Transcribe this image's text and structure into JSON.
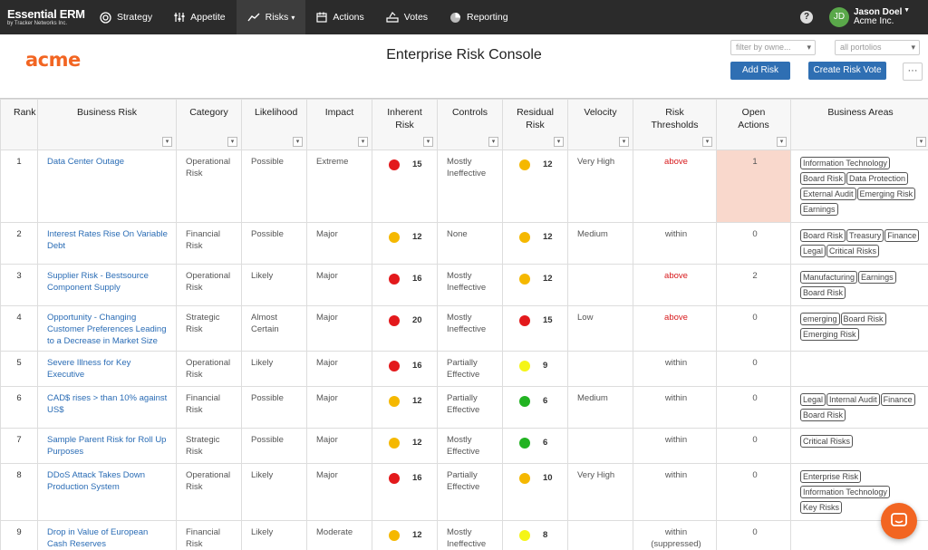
{
  "nav": {
    "brand_title": "Essential ERM",
    "brand_sub": "by Tracker Networks Inc.",
    "items": [
      {
        "label": "Strategy",
        "icon": "target-icon",
        "name": "nav-strategy"
      },
      {
        "label": "Appetite",
        "icon": "sliders-icon",
        "name": "nav-appetite"
      },
      {
        "label": "Risks",
        "icon": "trend-icon",
        "name": "nav-risks",
        "active": true
      },
      {
        "label": "Actions",
        "icon": "calendar-icon",
        "name": "nav-actions"
      },
      {
        "label": "Votes",
        "icon": "vote-icon",
        "name": "nav-votes"
      },
      {
        "label": "Reporting",
        "icon": "pie-icon",
        "name": "nav-reporting"
      }
    ],
    "help": "?",
    "user_initials": "JD",
    "user_name": "Jason Doel",
    "user_org": "Acme Inc."
  },
  "header": {
    "logo": "acme",
    "title": "Enterprise Risk Console",
    "filter_owner_placeholder": "filter by owne...",
    "portfolio_value": "all portolios",
    "add_risk": "Add Risk",
    "create_vote": "Create Risk Vote",
    "more": "···"
  },
  "colors": {
    "red": "#e3191c",
    "orange": "#f5b800",
    "yellow": "#f5f516",
    "green": "#22b322",
    "accent": "#2f6fb3",
    "brand": "#f26522"
  },
  "table": {
    "headers": [
      "Rank",
      "Business Risk",
      "Category",
      "Likelihood",
      "Impact",
      "Inherent Risk",
      "Controls",
      "Residual Risk",
      "Velocity",
      "Risk Thresholds",
      "Open Actions",
      "Business Areas"
    ],
    "rows": [
      {
        "rank": "1",
        "risk": "Data Center Outage",
        "category": "Operational Risk",
        "likelihood": "Possible",
        "impact": "Extreme",
        "inh_color": "red",
        "inh": "15",
        "controls": "Mostly Ineffective",
        "res_color": "orange",
        "res": "12",
        "velocity": "Very High",
        "threshold": "above",
        "open": "1",
        "areas": [
          "Information Technology",
          "Board Risk",
          "Data Protection",
          "External Audit",
          "Emerging Risk",
          "Earnings"
        ]
      },
      {
        "rank": "2",
        "risk": "Interest Rates Rise On Variable Debt",
        "category": "Financial Risk",
        "likelihood": "Possible",
        "impact": "Major",
        "inh_color": "orange",
        "inh": "12",
        "controls": "None",
        "res_color": "orange",
        "res": "12",
        "velocity": "Medium",
        "threshold": "within",
        "open": "0",
        "areas": [
          "Board Risk",
          "Treasury",
          "Finance",
          "Legal",
          "Critical Risks"
        ]
      },
      {
        "rank": "3",
        "risk": "Supplier Risk - Bestsource Component Supply",
        "category": "Operational Risk",
        "likelihood": "Likely",
        "impact": "Major",
        "inh_color": "red",
        "inh": "16",
        "controls": "Mostly Ineffective",
        "res_color": "orange",
        "res": "12",
        "velocity": "",
        "threshold": "above",
        "open": "2",
        "areas": [
          "Manufacturing",
          "Earnings",
          "Board Risk"
        ]
      },
      {
        "rank": "4",
        "risk": "Opportunity - Changing Customer Preferences Leading to a Decrease in Market Size",
        "category": "Strategic Risk",
        "likelihood": "Almost Certain",
        "impact": "Major",
        "inh_color": "red",
        "inh": "20",
        "controls": "Mostly Ineffective",
        "res_color": "red",
        "res": "15",
        "velocity": "Low",
        "threshold": "above",
        "open": "0",
        "areas": [
          "emerging",
          "Board Risk",
          "Emerging Risk"
        ]
      },
      {
        "rank": "5",
        "risk": "Severe Illness for Key Executive",
        "category": "Operational Risk",
        "likelihood": "Likely",
        "impact": "Major",
        "inh_color": "red",
        "inh": "16",
        "controls": "Partially Effective",
        "res_color": "yellow",
        "res": "9",
        "velocity": "",
        "threshold": "within",
        "open": "0",
        "areas": []
      },
      {
        "rank": "6",
        "risk": "CAD$ rises > than 10% against US$",
        "category": "Financial Risk",
        "likelihood": "Possible",
        "impact": "Major",
        "inh_color": "orange",
        "inh": "12",
        "controls": "Partially Effective",
        "res_color": "green",
        "res": "6",
        "velocity": "Medium",
        "threshold": "within",
        "open": "0",
        "areas": [
          "Legal",
          "Internal Audit",
          "Finance",
          "Board Risk"
        ]
      },
      {
        "rank": "7",
        "risk": "Sample Parent Risk for Roll Up Purposes",
        "category": "Strategic Risk",
        "likelihood": "Possible",
        "impact": "Major",
        "inh_color": "orange",
        "inh": "12",
        "controls": "Mostly Effective",
        "res_color": "green",
        "res": "6",
        "velocity": "",
        "threshold": "within",
        "open": "0",
        "areas": [
          "Critical Risks"
        ]
      },
      {
        "rank": "8",
        "risk": "DDoS Attack Takes Down Production System",
        "category": "Operational Risk",
        "likelihood": "Likely",
        "impact": "Major",
        "inh_color": "red",
        "inh": "16",
        "controls": "Partially Effective",
        "res_color": "orange",
        "res": "10",
        "velocity": "Very High",
        "threshold": "within",
        "open": "0",
        "areas": [
          "Enterprise Risk",
          "Information Technology",
          "Key Risks"
        ]
      },
      {
        "rank": "9",
        "risk": "Drop in Value of European Cash Reserves",
        "category": "Financial Risk",
        "likelihood": "Likely",
        "impact": "Moderate",
        "inh_color": "orange",
        "inh": "12",
        "controls": "Mostly Ineffective",
        "res_color": "yellow",
        "res": "8",
        "velocity": "",
        "threshold": "within (suppressed)",
        "open": "0",
        "areas": []
      }
    ]
  }
}
